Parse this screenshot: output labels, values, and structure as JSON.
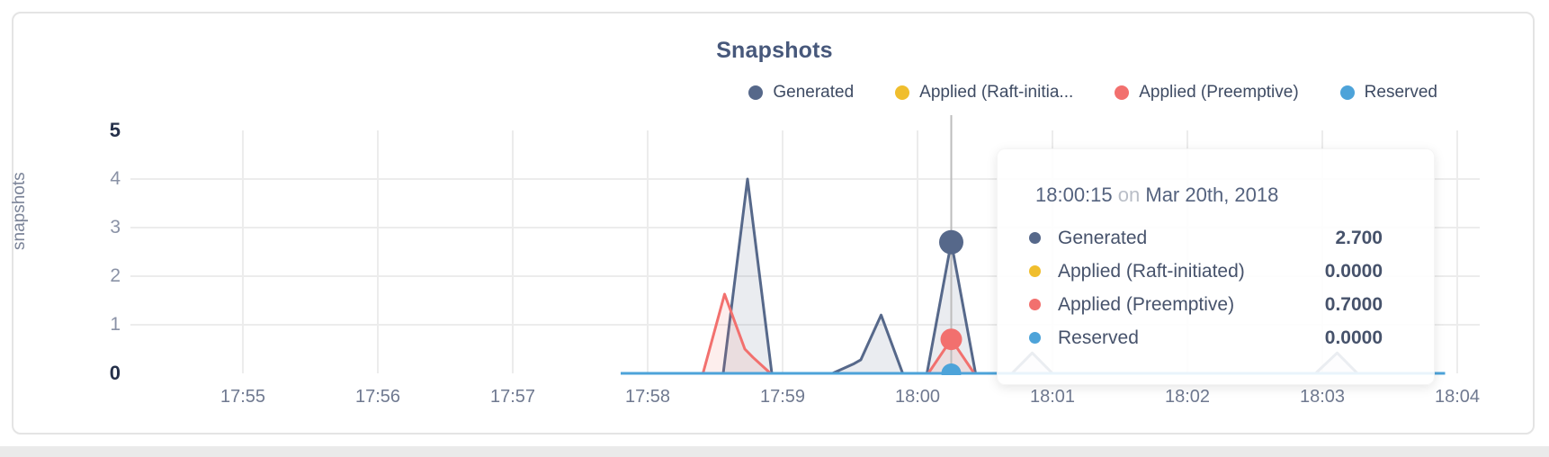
{
  "chart_data": {
    "type": "area",
    "title": "Snapshots",
    "ylabel": "snapshots",
    "ylim": [
      0,
      5
    ],
    "yticks": [
      "0",
      "1",
      "2",
      "3",
      "4",
      "5"
    ],
    "yticks_major": [
      "0",
      "5"
    ],
    "x_ticks": [
      "17:55",
      "17:56",
      "17:57",
      "17:58",
      "17:59",
      "18:00",
      "18:01",
      "18:02",
      "18:03",
      "18:04"
    ],
    "grid": "on",
    "legend_position": "top-right",
    "legend": [
      {
        "label": "Generated",
        "color": "#56688a"
      },
      {
        "label": "Applied (Raft-initia...",
        "color": "#f0be2d"
      },
      {
        "label": "Applied (Preemptive)",
        "color": "#f2706e"
      },
      {
        "label": "Reserved",
        "color": "#4da3d9"
      }
    ],
    "series": [
      {
        "name": "Generated",
        "color": "#56688a",
        "fill": "rgba(95,110,142,0.13)",
        "x_minutes_after_1755": [
          2.8,
          3.56,
          3.74,
          3.92,
          4.37,
          4.53,
          4.58,
          4.73,
          4.89,
          5.07,
          5.25,
          5.43,
          5.7,
          5.85,
          6.0,
          7.95,
          8.11,
          8.26,
          8.91
        ],
        "values": [
          0,
          0,
          4.0,
          0,
          0,
          0.2,
          0.28,
          1.2,
          0,
          0,
          2.7,
          0,
          0,
          0.42,
          0,
          0,
          0.42,
          0,
          0
        ]
      },
      {
        "name": "Applied (Raft-initiated)",
        "color": "#f0be2d",
        "fill": "rgba(240,190,45,0.12)",
        "x_minutes_after_1755": [
          2.8,
          8.91
        ],
        "values": [
          0,
          0
        ]
      },
      {
        "name": "Applied (Preemptive)",
        "color": "#f2706e",
        "fill": "rgba(242,112,110,0.12)",
        "x_minutes_after_1755": [
          2.8,
          3.41,
          3.57,
          3.72,
          3.78,
          3.91,
          5.08,
          5.25,
          5.42,
          8.91
        ],
        "values": [
          0,
          0,
          1.63,
          0.5,
          0.33,
          0,
          0,
          0.7,
          0,
          0
        ]
      },
      {
        "name": "Reserved",
        "color": "#4da3d9",
        "fill": "rgba(77,163,217,0.12)",
        "x_minutes_after_1755": [
          2.8,
          8.91
        ],
        "values": [
          0,
          0
        ]
      }
    ],
    "hover": {
      "t_minutes_after_1755": 5.25,
      "line_color": "#bdbdbd",
      "markers": [
        {
          "series": 0,
          "value": 2.7,
          "radius": 13.5
        },
        {
          "series": 2,
          "value": 0.7,
          "radius": 12
        },
        {
          "series": 3,
          "value": 0.0,
          "radius": 11
        }
      ]
    }
  },
  "tooltip": {
    "time": "18:00:15",
    "conj": "on",
    "date": "Mar 20th, 2018",
    "rows": [
      {
        "label": "Generated",
        "value": "2.700",
        "color": "#56688a"
      },
      {
        "label": "Applied (Raft-initiated)",
        "value": "0.0000",
        "color": "#f0be2d"
      },
      {
        "label": "Applied (Preemptive)",
        "value": "0.7000",
        "color": "#f2706e"
      },
      {
        "label": "Reserved",
        "value": "0.0000",
        "color": "#4da3d9"
      }
    ]
  }
}
